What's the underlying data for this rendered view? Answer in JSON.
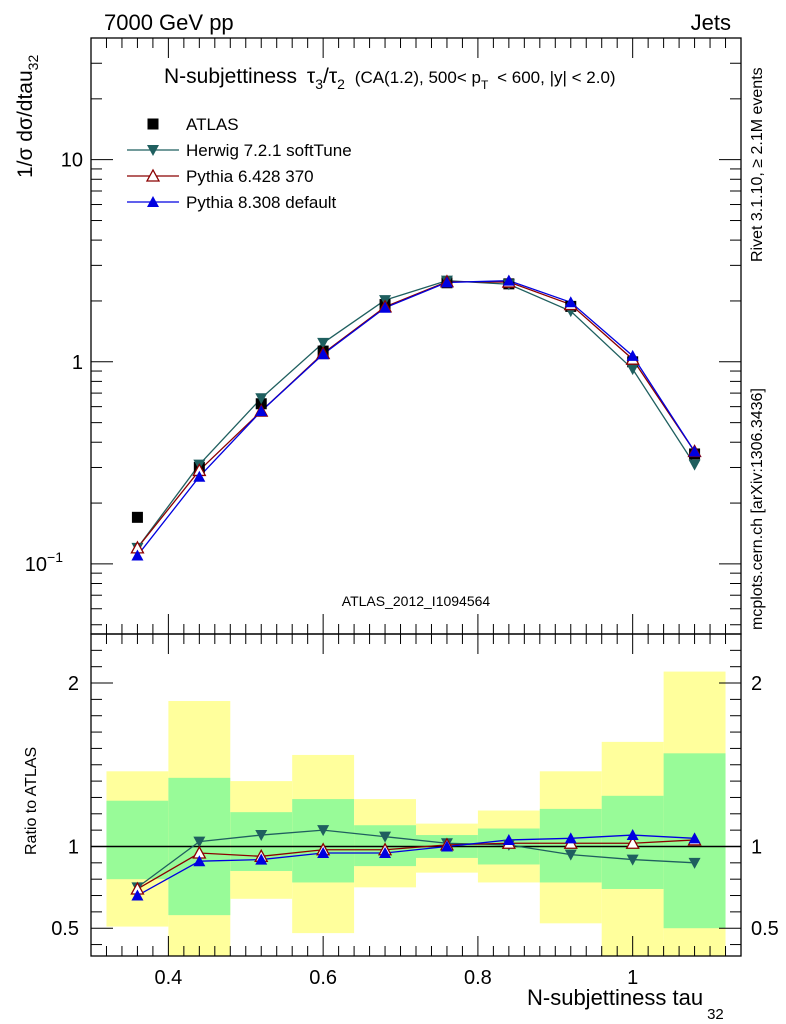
{
  "header": {
    "left": "7000 GeV pp",
    "right": "Jets"
  },
  "side_labels": {
    "rivet": "Rivet 3.1.10, ≥ 2.1M events",
    "mcplots": "mcplots.cern.ch [arXiv:1306.3436]"
  },
  "watermark": "ATLAS_2012_I1094564",
  "chart_data": {
    "type": "line",
    "title": "N-subjettiness τ₃/τ₂ (CA(1.2), 500< p_T < 600, |y| < 2.0)",
    "title_parts": {
      "main": "N-subjettiness",
      "tau": "τ",
      "sub3": "3",
      "slash": "/",
      "sub2": "2",
      "rest": "(CA(1.2), 500< p",
      "subT": "T",
      "tail": "< 600, |y| < 2.0)"
    },
    "xlabel": "N-subjettiness tau",
    "xlabel_sub": "32",
    "ylabel": "1/σ dσ/dtau",
    "ylabel_sub": "32",
    "ratio_ylabel": "Ratio to ATLAS",
    "xlim": [
      0.3,
      1.14
    ],
    "ylim": [
      0.045,
      40
    ],
    "yscale": "log",
    "ratio_ylim": [
      0.33,
      2.3
    ],
    "x_ticks": [
      0.4,
      0.6,
      0.8,
      1.0
    ],
    "x_tick_labels": [
      "0.4",
      "0.6",
      "0.8",
      "1"
    ],
    "y_ticks_main": [
      {
        "value": 0.1,
        "base": "10",
        "exp": "−1"
      },
      {
        "value": 1,
        "base": "1",
        "exp": ""
      },
      {
        "value": 10,
        "base": "10",
        "exp": ""
      }
    ],
    "y_ticks_ratio": [
      {
        "value": 0.5,
        "label": "0.5"
      },
      {
        "value": 1,
        "label": "1"
      },
      {
        "value": 2,
        "label": "2"
      }
    ],
    "bins": [
      {
        "x0": 0.32,
        "x1": 0.4,
        "inner": [
          0.8,
          1.28
        ],
        "outer": [
          0.51,
          1.46
        ]
      },
      {
        "x0": 0.4,
        "x1": 0.48,
        "inner": [
          0.58,
          1.42
        ],
        "outer": [
          0.33,
          1.89
        ]
      },
      {
        "x0": 0.48,
        "x1": 0.56,
        "inner": [
          0.85,
          1.21
        ],
        "outer": [
          0.68,
          1.4
        ]
      },
      {
        "x0": 0.56,
        "x1": 0.64,
        "inner": [
          0.78,
          1.29
        ],
        "outer": [
          0.47,
          1.56
        ]
      },
      {
        "x0": 0.64,
        "x1": 0.72,
        "inner": [
          0.88,
          1.13
        ],
        "outer": [
          0.75,
          1.29
        ]
      },
      {
        "x0": 0.72,
        "x1": 0.8,
        "inner": [
          0.93,
          1.07
        ],
        "outer": [
          0.84,
          1.14
        ]
      },
      {
        "x0": 0.8,
        "x1": 0.88,
        "inner": [
          0.89,
          1.11
        ],
        "outer": [
          0.78,
          1.22
        ]
      },
      {
        "x0": 0.88,
        "x1": 0.96,
        "inner": [
          0.78,
          1.23
        ],
        "outer": [
          0.53,
          1.46
        ]
      },
      {
        "x0": 0.96,
        "x1": 1.04,
        "inner": [
          0.74,
          1.31
        ],
        "outer": [
          0.33,
          1.64
        ]
      },
      {
        "x0": 1.04,
        "x1": 1.12,
        "inner": [
          0.5,
          1.57
        ],
        "outer": [
          0.33,
          2.07
        ]
      }
    ],
    "x": [
      0.36,
      0.44,
      0.52,
      0.6,
      0.68,
      0.76,
      0.84,
      0.92,
      1.0,
      1.08
    ],
    "atlas": {
      "name": "ATLAS",
      "color": "#000000",
      "values": [
        0.17,
        0.3,
        0.62,
        1.13,
        1.92,
        2.46,
        2.43,
        1.88,
        1.0,
        0.35
      ]
    },
    "series": [
      {
        "name": "Herwig 7.2.1 softTune",
        "color": "#1f5f5f",
        "marker": "triangle-down-filled",
        "values": [
          0.12,
          0.31,
          0.66,
          1.24,
          2.02,
          2.52,
          2.42,
          1.78,
          0.92,
          0.31
        ],
        "ratio": [
          0.75,
          1.03,
          1.07,
          1.1,
          1.06,
          1.02,
          1.01,
          0.95,
          0.92,
          0.9
        ]
      },
      {
        "name": "Pythia 6.428 370",
        "color": "#8b0000",
        "marker": "triangle-up-open",
        "values": [
          0.12,
          0.29,
          0.57,
          1.1,
          1.87,
          2.49,
          2.48,
          1.92,
          1.03,
          0.36
        ],
        "ratio": [
          0.74,
          0.96,
          0.94,
          0.98,
          0.98,
          1.01,
          1.02,
          1.02,
          1.02,
          1.04
        ]
      },
      {
        "name": "Pythia 8.308 default",
        "color": "#0000e0",
        "marker": "triangle-up-filled",
        "values": [
          0.11,
          0.27,
          0.57,
          1.09,
          1.85,
          2.47,
          2.52,
          1.97,
          1.07,
          0.36
        ],
        "ratio": [
          0.7,
          0.91,
          0.92,
          0.96,
          0.96,
          1.0,
          1.04,
          1.05,
          1.07,
          1.05
        ]
      }
    ],
    "colors": {
      "band_inner": "#98fb98",
      "band_outer": "#ffff9c"
    },
    "legend_position": "top-left"
  }
}
